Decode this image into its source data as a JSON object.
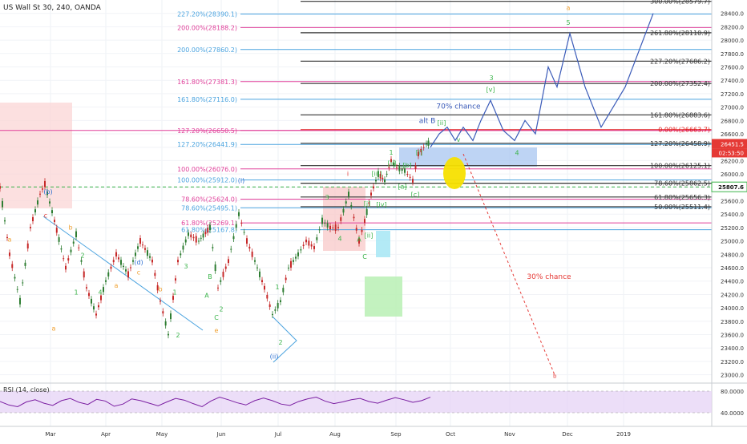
{
  "header": {
    "title": "US Wall St 30, 240, OANDA"
  },
  "rsi": {
    "label": "RSI (14, close)",
    "axis": [
      "80.0000",
      "40.0000"
    ]
  },
  "current": {
    "price_tag": "26451.5",
    "time_tag": "02:53:50",
    "price_marker": "25807.6"
  },
  "colors": {
    "blue_fib": "#4aa3df",
    "pink_fib": "#e0409a",
    "black_fib": "#333333",
    "red_fib": "#e02020",
    "elliott_green": "#3cb44b",
    "elliott_orange": "#f0a030",
    "elliott_red": "#e53935",
    "elliott_blue": "#2c6fd1",
    "projection": "#3a5ab8",
    "dashed_red": "#e53935",
    "rsi_line": "#7b1fa2"
  },
  "chart_data": {
    "type": "line",
    "title": "US Wall St 30, 240, OANDA",
    "x_axis_labels": [
      "Mar",
      "Apr",
      "May",
      "Jun",
      "Jul",
      "Aug",
      "Sep",
      "Oct",
      "Nov",
      "Dec",
      "2019"
    ],
    "y_axis_labels": [
      "28400.0",
      "28200.0",
      "28000.0",
      "27800.0",
      "27600.0",
      "27400.0",
      "27200.0",
      "27000.0",
      "26800.0",
      "26600.0",
      "26400.0",
      "26200.0",
      "26000.0",
      "25800.0",
      "25600.0",
      "25400.0",
      "25200.0",
      "25000.0",
      "24800.0",
      "24600.0",
      "24400.0",
      "24200.0",
      "24000.0",
      "23800.0",
      "23600.0",
      "23400.0",
      "23200.0",
      "23000.0"
    ],
    "ylim": [
      22900,
      28600
    ],
    "price_path": [
      [
        0,
        25800
      ],
      [
        12,
        24800
      ],
      [
        25,
        24100
      ],
      [
        38,
        25200
      ],
      [
        50,
        25700
      ],
      [
        56,
        25850
      ],
      [
        68,
        25300
      ],
      [
        82,
        24600
      ],
      [
        95,
        25100
      ],
      [
        108,
        24300
      ],
      [
        120,
        23900
      ],
      [
        132,
        24400
      ],
      [
        145,
        24800
      ],
      [
        160,
        24500
      ],
      [
        175,
        25000
      ],
      [
        190,
        24700
      ],
      [
        200,
        24100
      ],
      [
        210,
        23600
      ],
      [
        222,
        24700
      ],
      [
        235,
        25100
      ],
      [
        248,
        25000
      ],
      [
        262,
        25200
      ],
      [
        272,
        24300
      ],
      [
        285,
        24700
      ],
      [
        298,
        25400
      ],
      [
        308,
        25000
      ],
      [
        318,
        24700
      ],
      [
        330,
        24300
      ],
      [
        340,
        23900
      ],
      [
        350,
        24100
      ],
      [
        360,
        24600
      ],
      [
        372,
        24800
      ],
      [
        382,
        25000
      ],
      [
        392,
        24900
      ],
      [
        402,
        25300
      ],
      [
        412,
        25200
      ],
      [
        422,
        25200
      ],
      [
        435,
        25700
      ],
      [
        448,
        25000
      ],
      [
        455,
        25300
      ],
      [
        463,
        25700
      ],
      [
        472,
        26000
      ],
      [
        480,
        25900
      ],
      [
        488,
        26200
      ],
      [
        495,
        26100
      ],
      [
        505,
        26050
      ],
      [
        515,
        25900
      ],
      [
        522,
        26300
      ],
      [
        532,
        26450
      ],
      [
        537,
        26470
      ]
    ],
    "projection_path": [
      [
        537,
        26400
      ],
      [
        548,
        26600
      ],
      [
        558,
        26700
      ],
      [
        568,
        26500
      ],
      [
        578,
        26700
      ],
      [
        590,
        26500
      ],
      [
        600,
        26800
      ],
      [
        612,
        27100
      ],
      [
        628,
        26650
      ],
      [
        642,
        26500
      ],
      [
        655,
        26800
      ],
      [
        668,
        26600
      ],
      [
        684,
        27600
      ],
      [
        695,
        27300
      ],
      [
        711,
        28100
      ],
      [
        730,
        27300
      ],
      [
        750,
        26700
      ],
      [
        780,
        27300
      ],
      [
        815,
        28400
      ]
    ],
    "rsi_series": [
      56,
      48,
      44,
      55,
      60,
      52,
      47,
      58,
      63,
      54,
      49,
      61,
      57,
      45,
      50,
      62,
      58,
      52,
      46,
      55,
      63,
      59,
      51,
      44,
      57,
      66,
      60,
      53,
      48,
      58,
      64,
      58,
      50,
      47,
      56,
      62,
      66,
      57,
      51,
      55,
      60,
      63,
      56,
      52,
      59,
      65,
      60,
      54,
      58,
      66
    ],
    "fib_levels_left": [
      {
        "label": "227.20%(28390.1)",
        "price": 28390.1,
        "color": "blue"
      },
      {
        "label": "200.00%(28188.2)",
        "price": 28188.2,
        "color": "pink"
      },
      {
        "label": "200.00%(27860.2)",
        "price": 27860.2,
        "color": "blue"
      },
      {
        "label": "161.80%(27381.3)",
        "price": 27381.3,
        "color": "pink"
      },
      {
        "label": "161.80%(27116.0)",
        "price": 27116.0,
        "color": "blue"
      },
      {
        "label": "127.20%(26650.5)",
        "price": 26650.5,
        "color": "pink"
      },
      {
        "label": "127.20%(26441.9)",
        "price": 26441.9,
        "color": "blue"
      },
      {
        "label": "100.00%(26076.0)",
        "price": 26076.0,
        "color": "pink"
      },
      {
        "label": "100.00%(25912.0)",
        "price": 25912.0,
        "color": "blue"
      },
      {
        "label": "78.60%(25624.0)",
        "price": 25624.0,
        "color": "pink"
      },
      {
        "label": "78.60%(25495.1)",
        "price": 25495.1,
        "color": "blue"
      },
      {
        "label": "61.80%(25269.1)",
        "price": 25269.1,
        "color": "pink"
      },
      {
        "label": "61.80%(25167.8)",
        "price": 25167.8,
        "color": "blue"
      }
    ],
    "fib_levels_right": [
      {
        "label": "300.00%(28579.7)",
        "price": 28579.7,
        "color": "black"
      },
      {
        "label": "261.80%(28110.9)",
        "price": 28110.9,
        "color": "black"
      },
      {
        "label": "227.20%(27686.2)",
        "price": 27686.2,
        "color": "black"
      },
      {
        "label": "200.00%(27352.4)",
        "price": 27352.4,
        "color": "black"
      },
      {
        "label": "161.80%(26883.6)",
        "price": 26883.6,
        "color": "black"
      },
      {
        "label": "0.00%(26663.7)",
        "price": 26663.7,
        "color": "red"
      },
      {
        "label": "127.20%(26458.9)",
        "price": 26458.9,
        "color": "black"
      },
      {
        "label": "100.00%(26125.1)",
        "price": 26125.1,
        "color": "black"
      },
      {
        "label": "78.60%(25862.5)",
        "price": 25862.5,
        "color": "black"
      },
      {
        "label": "61.80%(25656.3)",
        "price": 25656.3,
        "color": "black"
      },
      {
        "label": "50.00%(25511.4)",
        "price": 25511.4,
        "color": "black"
      }
    ],
    "annotations": [
      {
        "text": "70% chance",
        "x": 572,
        "price": 26980,
        "color": "blue"
      },
      {
        "text": "30% chance",
        "x": 685,
        "price": 24430,
        "color": "red"
      },
      {
        "text": "alt B",
        "x": 533,
        "price": 26760,
        "color": "blue"
      }
    ],
    "wave_labels": [
      {
        "text": "(b)",
        "x": 60,
        "price": 25700,
        "color": "blue"
      },
      {
        "text": "c",
        "x": 57,
        "price": 25350,
        "color": "red"
      },
      {
        "text": "b",
        "x": 88,
        "price": 25170,
        "color": "orange"
      },
      {
        "text": "a",
        "x": 12,
        "price": 24990,
        "color": "orange"
      },
      {
        "text": "2",
        "x": 103,
        "price": 24750,
        "color": "green"
      },
      {
        "text": "(d)",
        "x": 173,
        "price": 24650,
        "color": "blue"
      },
      {
        "text": "c",
        "x": 173,
        "price": 24500,
        "color": "orange"
      },
      {
        "text": "a",
        "x": 145,
        "price": 24300,
        "color": "orange"
      },
      {
        "text": "1",
        "x": 95,
        "price": 24200,
        "color": "green"
      },
      {
        "text": "4",
        "x": 125,
        "price": 24200,
        "color": "green"
      },
      {
        "text": "a",
        "x": 67,
        "price": 23660,
        "color": "orange"
      },
      {
        "text": "b",
        "x": 200,
        "price": 24250,
        "color": "orange"
      },
      {
        "text": "1",
        "x": 218,
        "price": 24200,
        "color": "green"
      },
      {
        "text": "3",
        "x": 232,
        "price": 24590,
        "color": "green"
      },
      {
        "text": "B",
        "x": 262,
        "price": 24430,
        "color": "green"
      },
      {
        "text": "A",
        "x": 258,
        "price": 24150,
        "color": "green"
      },
      {
        "text": "2",
        "x": 222,
        "price": 23560,
        "color": "green"
      },
      {
        "text": "2",
        "x": 276,
        "price": 23950,
        "color": "green"
      },
      {
        "text": "C",
        "x": 270,
        "price": 23820,
        "color": "green"
      },
      {
        "text": "e",
        "x": 270,
        "price": 23630,
        "color": "orange"
      },
      {
        "text": "(i)",
        "x": 301,
        "price": 25870,
        "color": "blue"
      },
      {
        "text": "1",
        "x": 346,
        "price": 24280,
        "color": "green"
      },
      {
        "text": "2",
        "x": 350,
        "price": 23450,
        "color": "green"
      },
      {
        "text": "(ii)",
        "x": 342,
        "price": 23240,
        "color": "blue"
      },
      {
        "text": "3",
        "x": 408,
        "price": 25620,
        "color": "green"
      },
      {
        "text": "4",
        "x": 424,
        "price": 25000,
        "color": "green"
      },
      {
        "text": "i",
        "x": 434,
        "price": 25970,
        "color": "red"
      },
      {
        "text": "A",
        "x": 448,
        "price": 24990,
        "color": "green"
      },
      {
        "text": "C",
        "x": 455,
        "price": 24730,
        "color": "green"
      },
      {
        "text": "1",
        "x": 488,
        "price": 26290,
        "color": "green"
      },
      {
        "text": "3",
        "x": 613,
        "price": 27400,
        "color": "green"
      },
      {
        "text": "4",
        "x": 645,
        "price": 26280,
        "color": "green"
      },
      {
        "text": "5",
        "x": 709,
        "price": 28230,
        "color": "green"
      },
      {
        "text": "a",
        "x": 709,
        "price": 28450,
        "color": "orange"
      },
      {
        "text": "[i]",
        "x": 458,
        "price": 25520,
        "color": "green"
      },
      {
        "text": "[ii]",
        "x": 460,
        "price": 25050,
        "color": "green"
      },
      {
        "text": "[iii]",
        "x": 470,
        "price": 25970,
        "color": "green"
      },
      {
        "text": "[iv]",
        "x": 476,
        "price": 25510,
        "color": "green"
      },
      {
        "text": "[ii]",
        "x": 489,
        "price": 26130,
        "color": "green"
      },
      {
        "text": "[b]",
        "x": 508,
        "price": 26100,
        "color": "green"
      },
      {
        "text": "[a]",
        "x": 502,
        "price": 25780,
        "color": "green"
      },
      {
        "text": "[c]",
        "x": 518,
        "price": 25660,
        "color": "green"
      },
      {
        "text": "[i]",
        "x": 523,
        "price": 26290,
        "color": "green"
      },
      {
        "text": "[ii]",
        "x": 551,
        "price": 26730,
        "color": "green"
      },
      {
        "text": "[v]",
        "x": 612,
        "price": 27230,
        "color": "green"
      },
      {
        "text": "v",
        "x": 572,
        "price": 26480,
        "color": "green"
      }
    ]
  }
}
